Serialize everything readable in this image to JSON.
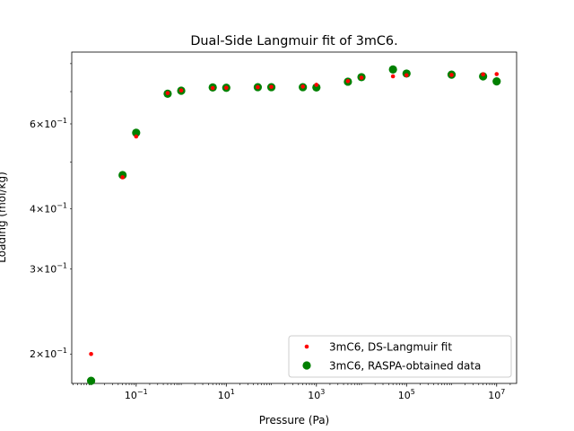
{
  "chart_data": {
    "type": "scatter",
    "title": "Dual-Side Langmuir fit of 3mC6.",
    "xlabel": "Pressure (Pa)",
    "ylabel": "Loading (mol/kg)",
    "xscale": "log",
    "yscale": "log",
    "xlim": [
      0.00372,
      27700000.0
    ],
    "ylim": [
      0.1738,
      0.8454
    ],
    "x_ticks": [
      {
        "value": 0.1,
        "base": "10",
        "exp": "−1"
      },
      {
        "value": 10,
        "base": "10",
        "exp": "1"
      },
      {
        "value": 1000,
        "base": "10",
        "exp": "3"
      },
      {
        "value": 100000,
        "base": "10",
        "exp": "5"
      },
      {
        "value": 10000000,
        "base": "10",
        "exp": "7"
      }
    ],
    "y_ticks": [
      {
        "value": 0.2,
        "mant": "2",
        "exp": "−1"
      },
      {
        "value": 0.3,
        "mant": "3",
        "exp": "−1"
      },
      {
        "value": 0.4,
        "mant": "4",
        "exp": "−1"
      },
      {
        "value": 0.6,
        "mant": "6",
        "exp": "−1"
      }
    ],
    "legend_position": "lower right",
    "grid": false,
    "series": [
      {
        "name": "3mC6, DS-Langmuir fit",
        "color": "#ff0000",
        "marker": "small-dot",
        "points": [
          [
            0.01,
            0.2
          ],
          [
            0.05,
            0.465
          ],
          [
            0.1,
            0.565
          ],
          [
            0.5,
            0.695
          ],
          [
            1,
            0.704
          ],
          [
            5,
            0.712
          ],
          [
            10,
            0.713
          ],
          [
            50,
            0.715
          ],
          [
            100,
            0.716
          ],
          [
            500,
            0.717
          ],
          [
            1000,
            0.723
          ],
          [
            5000,
            0.736
          ],
          [
            10000,
            0.748
          ],
          [
            50000,
            0.753
          ],
          [
            100000,
            0.757
          ],
          [
            1000000,
            0.758
          ],
          [
            5000000,
            0.76
          ],
          [
            10000000,
            0.761
          ]
        ]
      },
      {
        "name": "3mC6, RASPA-obtained data",
        "color": "#008000",
        "marker": "circle",
        "points": [
          [
            0.01,
            0.176
          ],
          [
            0.05,
            0.47
          ],
          [
            0.1,
            0.575
          ],
          [
            0.5,
            0.693
          ],
          [
            1,
            0.703
          ],
          [
            5,
            0.714
          ],
          [
            10,
            0.713
          ],
          [
            50,
            0.715
          ],
          [
            100,
            0.715
          ],
          [
            500,
            0.715
          ],
          [
            1000,
            0.714
          ],
          [
            5000,
            0.734
          ],
          [
            10000,
            0.75
          ],
          [
            50000,
            0.778
          ],
          [
            100000,
            0.763
          ],
          [
            1000000,
            0.759
          ],
          [
            5000000,
            0.753
          ],
          [
            10000000,
            0.735
          ]
        ]
      }
    ]
  }
}
